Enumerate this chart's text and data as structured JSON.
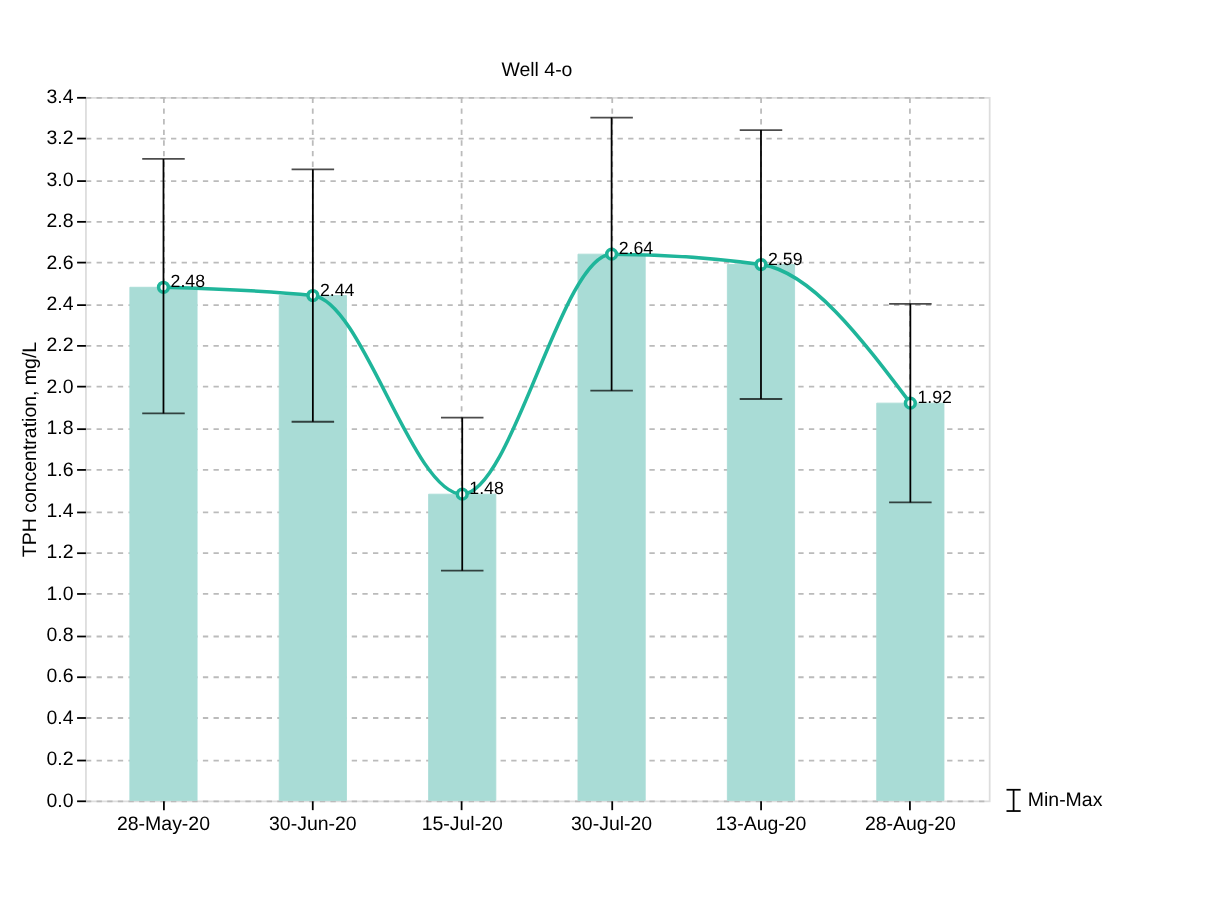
{
  "chart_data": {
    "type": "bar",
    "title": "Well 4-o",
    "ylabel": "TPH concentration, mg/L",
    "categories": [
      "28-May-20",
      "30-Jun-20",
      "15-Jul-20",
      "30-Jul-20",
      "13-Aug-20",
      "28-Aug-20"
    ],
    "series": [
      {
        "type": "bar",
        "color": "#a9dcd6",
        "values": [
          2.48,
          2.44,
          1.48,
          2.64,
          2.59,
          1.92
        ],
        "errors": [
          [
            1.87,
            3.1
          ],
          [
            1.83,
            3.05
          ],
          [
            1.11,
            1.85
          ],
          [
            1.98,
            3.3
          ],
          [
            1.94,
            3.24
          ],
          [
            1.44,
            2.4
          ]
        ]
      },
      {
        "type": "line",
        "color": "#1fb59a",
        "values": [
          2.48,
          2.44,
          1.48,
          2.64,
          2.59,
          1.92
        ],
        "value_labels": [
          "2.48",
          "2.44",
          "1.48",
          "2.64",
          "2.59",
          "1.92"
        ],
        "marker": "circle"
      }
    ],
    "ylim": [
      0,
      3.4
    ],
    "yticks": [
      {
        "value": 0,
        "label": "0.0"
      },
      0.2,
      0.4,
      0.6,
      0.8,
      {
        "value": 1,
        "label": "1.0"
      },
      1.2,
      1.4,
      1.6,
      1.8,
      {
        "value": 2,
        "label": "2.0"
      },
      2.2,
      2.4,
      2.6,
      2.8,
      {
        "value": 3,
        "label": "3.0"
      },
      3.2,
      3.4
    ],
    "grid": true,
    "annotations": [
      "Min-Max"
    ]
  }
}
